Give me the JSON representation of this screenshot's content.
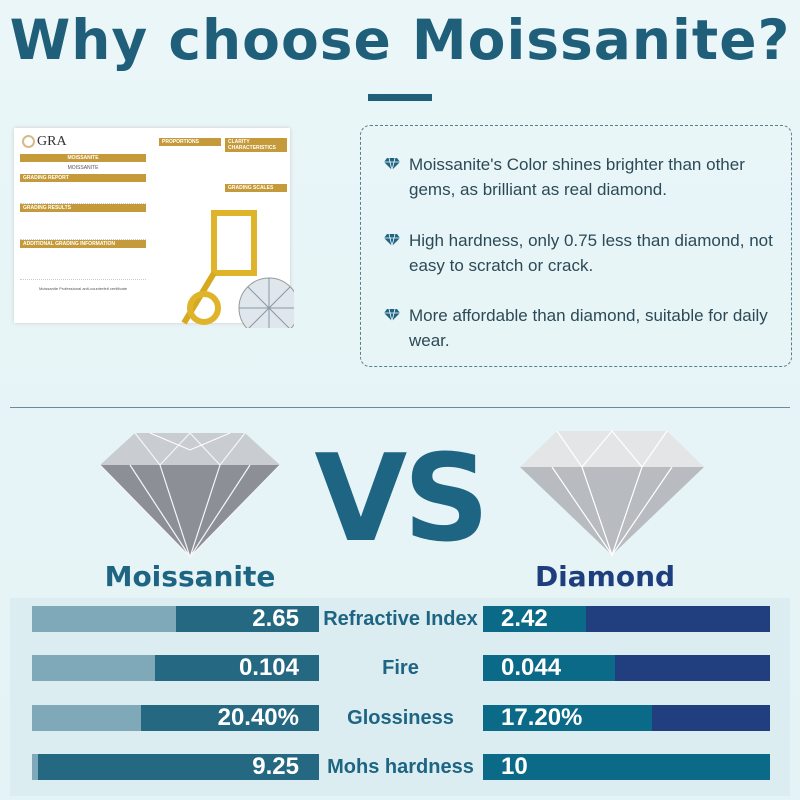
{
  "title": "Why choose Moissanite?",
  "certificate": {
    "brand": "GRA",
    "stone": "MOISSANITE",
    "sections": [
      "GRADING REPORT",
      "GRADING RESULTS",
      "ADDITIONAL GRADING INFORMATION"
    ],
    "right_sections": [
      "PROPORTIONS",
      "CLARITY CHARACTERISTICS",
      "GRADING SCALES"
    ],
    "footer": "Moissanite Professional anti-counterfeit certificate"
  },
  "features": [
    {
      "icon": "diamond-icon",
      "text": "Moissanite's Color shines brighter than other gems, as brilliant as real diamond."
    },
    {
      "icon": "diamond-icon",
      "text": "High hardness, only 0.75 less than diamond, not easy to scratch or crack."
    },
    {
      "icon": "diamond-icon",
      "text": "More affordable than diamond, suitable for daily wear."
    }
  ],
  "vs": "VS",
  "left_label": "Moissanite",
  "right_label": "Diamond",
  "colors": {
    "title": "#1f5f7a",
    "moissanite_bar": "#246882",
    "moissanite_track": "#7fa8b8",
    "diamond_bar": "#0a6a88",
    "diamond_track": "#213f7e"
  },
  "comparison": [
    {
      "metric": "Refractive Index",
      "moissanite": "2.65",
      "diamond": "2.42",
      "m_fill": 0.5,
      "d_fill": 0.36
    },
    {
      "metric": "Fire",
      "moissanite": "0.104",
      "diamond": "0.044",
      "m_fill": 0.57,
      "d_fill": 0.46
    },
    {
      "metric": "Glossiness",
      "moissanite": "20.40%",
      "diamond": "17.20%",
      "m_fill": 0.62,
      "d_fill": 0.59
    },
    {
      "metric": "Mohs hardness",
      "moissanite": "9.25",
      "diamond": "10",
      "m_fill": 0.98,
      "d_fill": 1.0
    }
  ]
}
